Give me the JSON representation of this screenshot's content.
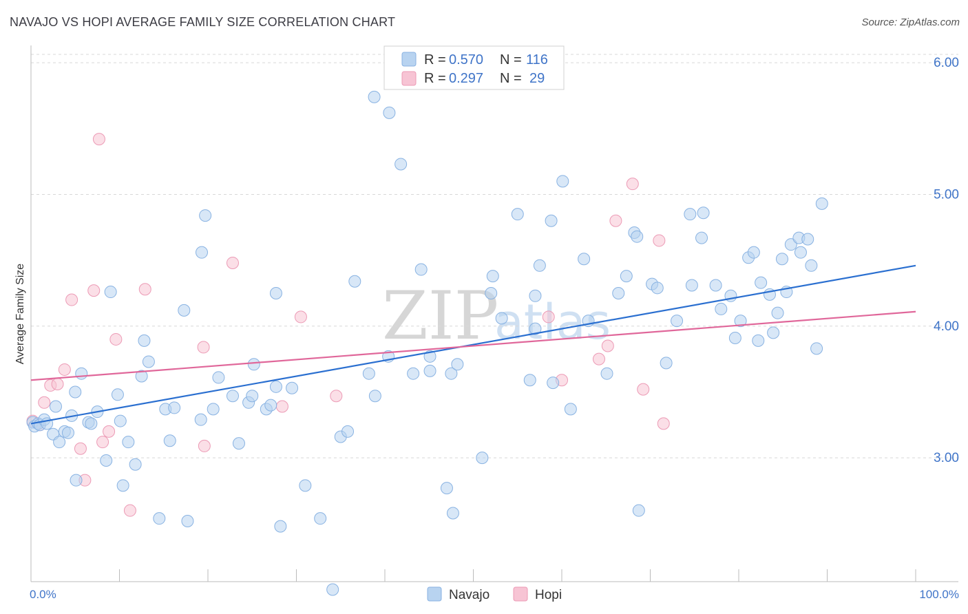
{
  "title": "NAVAJO VS HOPI AVERAGE FAMILY SIZE CORRELATION CHART",
  "source": "Source: ZipAtlas.com",
  "watermark": {
    "zip": "ZIP",
    "atlas": "atlas"
  },
  "colors": {
    "navajo_fill": "#b8d3f0",
    "navajo_stroke": "#88b2e2",
    "navajo_line": "#2a6fd0",
    "hopi_fill": "#f7c4d4",
    "hopi_stroke": "#ec9ab5",
    "hopi_line": "#e0679a",
    "grid": "#d8d8d8",
    "tick_text": "#3f74c8"
  },
  "legend": {
    "rows": [
      {
        "r_label": "R =",
        "r_value": "0.570",
        "n_label": "N =",
        "n_value": "116"
      },
      {
        "r_label": "R =",
        "r_value": "0.297",
        "n_label": "N =",
        "n_value": "29"
      }
    ]
  },
  "bottom_legend": {
    "navajo": "Navajo",
    "hopi": "Hopi"
  },
  "chart_data": {
    "type": "scatter",
    "title": "NAVAJO VS HOPI AVERAGE FAMILY SIZE CORRELATION CHART",
    "xlabel": "",
    "ylabel": "Average Family Size",
    "xlim": [
      0,
      100
    ],
    "ylim": [
      2.06,
      6.1
    ],
    "x_tick_labels": [
      {
        "value": 0,
        "label": "0.0%"
      },
      {
        "value": 100,
        "label": "100.0%"
      }
    ],
    "y_ticks": [
      {
        "value": 3.0,
        "label": "3.00"
      },
      {
        "value": 4.0,
        "label": "4.00"
      },
      {
        "value": 5.0,
        "label": "5.00"
      },
      {
        "value": 6.0,
        "label": "6.00"
      }
    ],
    "series": [
      {
        "name": "Navajo",
        "trendline": {
          "x": [
            0,
            100
          ],
          "y": [
            3.26,
            4.46
          ]
        },
        "points": [
          [
            0.2,
            3.27
          ],
          [
            0.4,
            3.24
          ],
          [
            0.8,
            3.26
          ],
          [
            1.0,
            3.25
          ],
          [
            1.5,
            3.29
          ],
          [
            1.8,
            3.26
          ],
          [
            2.5,
            3.18
          ],
          [
            2.8,
            3.39
          ],
          [
            3.2,
            3.12
          ],
          [
            3.8,
            3.2
          ],
          [
            4.2,
            3.19
          ],
          [
            4.6,
            3.32
          ],
          [
            5.0,
            3.5
          ],
          [
            5.1,
            2.83
          ],
          [
            5.7,
            3.64
          ],
          [
            6.5,
            3.27
          ],
          [
            6.8,
            3.26
          ],
          [
            7.5,
            3.35
          ],
          [
            8.5,
            2.98
          ],
          [
            9.0,
            4.26
          ],
          [
            9.8,
            3.48
          ],
          [
            10.1,
            3.28
          ],
          [
            10.4,
            2.79
          ],
          [
            11.0,
            3.12
          ],
          [
            11.8,
            2.95
          ],
          [
            12.5,
            3.62
          ],
          [
            12.8,
            3.89
          ],
          [
            13.3,
            3.73
          ],
          [
            14.5,
            2.54
          ],
          [
            15.2,
            3.37
          ],
          [
            16.2,
            3.38
          ],
          [
            15.7,
            3.13
          ],
          [
            17.3,
            4.12
          ],
          [
            17.7,
            2.52
          ],
          [
            19.2,
            3.29
          ],
          [
            19.3,
            4.56
          ],
          [
            19.7,
            4.84
          ],
          [
            20.6,
            3.37
          ],
          [
            21.2,
            3.61
          ],
          [
            22.8,
            3.47
          ],
          [
            23.5,
            3.11
          ],
          [
            24.6,
            3.42
          ],
          [
            25.0,
            3.47
          ],
          [
            25.2,
            3.71
          ],
          [
            26.6,
            3.37
          ],
          [
            27.1,
            3.4
          ],
          [
            27.7,
            3.54
          ],
          [
            27.7,
            4.25
          ],
          [
            28.2,
            2.48
          ],
          [
            29.5,
            3.53
          ],
          [
            31.0,
            2.79
          ],
          [
            32.7,
            2.54
          ],
          [
            34.1,
            2.0
          ],
          [
            35.0,
            3.16
          ],
          [
            35.8,
            3.2
          ],
          [
            36.6,
            4.34
          ],
          [
            38.2,
            3.64
          ],
          [
            38.8,
            5.74
          ],
          [
            38.9,
            3.47
          ],
          [
            40.5,
            5.62
          ],
          [
            40.4,
            3.77
          ],
          [
            41.8,
            5.23
          ],
          [
            43.2,
            3.64
          ],
          [
            44.1,
            4.43
          ],
          [
            45.1,
            3.66
          ],
          [
            45.1,
            3.77
          ],
          [
            47.0,
            2.77
          ],
          [
            47.5,
            3.64
          ],
          [
            47.7,
            2.58
          ],
          [
            48.2,
            3.71
          ],
          [
            51.0,
            3.0
          ],
          [
            52.0,
            4.25
          ],
          [
            52.2,
            4.38
          ],
          [
            53.2,
            4.06
          ],
          [
            55.0,
            4.85
          ],
          [
            56.4,
            3.59
          ],
          [
            57.0,
            4.23
          ],
          [
            57.0,
            3.98
          ],
          [
            57.5,
            4.46
          ],
          [
            58.8,
            4.8
          ],
          [
            59.0,
            3.57
          ],
          [
            60.1,
            5.1
          ],
          [
            61.0,
            3.37
          ],
          [
            62.5,
            4.51
          ],
          [
            63.0,
            4.04
          ],
          [
            65.1,
            3.64
          ],
          [
            66.4,
            4.25
          ],
          [
            67.3,
            4.38
          ],
          [
            68.2,
            4.71
          ],
          [
            68.5,
            4.68
          ],
          [
            68.7,
            2.6
          ],
          [
            70.2,
            4.32
          ],
          [
            70.8,
            4.29
          ],
          [
            71.8,
            3.72
          ],
          [
            73.0,
            4.04
          ],
          [
            74.5,
            4.85
          ],
          [
            74.7,
            4.31
          ],
          [
            75.8,
            4.67
          ],
          [
            76.0,
            4.86
          ],
          [
            77.4,
            4.31
          ],
          [
            78.0,
            4.13
          ],
          [
            79.1,
            4.23
          ],
          [
            79.6,
            3.91
          ],
          [
            80.2,
            4.04
          ],
          [
            81.1,
            4.52
          ],
          [
            81.7,
            4.56
          ],
          [
            82.2,
            3.89
          ],
          [
            82.5,
            4.33
          ],
          [
            83.5,
            4.24
          ],
          [
            83.9,
            3.95
          ],
          [
            84.4,
            4.1
          ],
          [
            84.9,
            4.51
          ],
          [
            85.4,
            4.26
          ],
          [
            85.9,
            4.62
          ],
          [
            86.8,
            4.67
          ],
          [
            87.0,
            4.56
          ],
          [
            87.8,
            4.66
          ],
          [
            88.2,
            4.46
          ],
          [
            88.8,
            3.83
          ],
          [
            89.4,
            4.93
          ]
        ]
      },
      {
        "name": "Hopi",
        "trendline": {
          "x": [
            0,
            100
          ],
          "y": [
            3.59,
            4.11
          ]
        },
        "points": [
          [
            0.2,
            3.28
          ],
          [
            1.0,
            3.25
          ],
          [
            1.5,
            3.42
          ],
          [
            2.2,
            3.55
          ],
          [
            3.0,
            3.56
          ],
          [
            3.8,
            3.67
          ],
          [
            4.6,
            4.2
          ],
          [
            5.6,
            3.07
          ],
          [
            6.1,
            2.83
          ],
          [
            7.1,
            4.27
          ],
          [
            7.7,
            5.42
          ],
          [
            8.1,
            3.12
          ],
          [
            8.8,
            3.2
          ],
          [
            9.6,
            3.9
          ],
          [
            11.2,
            2.6
          ],
          [
            12.9,
            4.28
          ],
          [
            19.5,
            3.84
          ],
          [
            19.6,
            3.09
          ],
          [
            22.8,
            4.48
          ],
          [
            28.4,
            3.39
          ],
          [
            30.5,
            4.07
          ],
          [
            34.5,
            3.47
          ],
          [
            58.5,
            4.07
          ],
          [
            60.0,
            3.59
          ],
          [
            64.2,
            3.75
          ],
          [
            65.2,
            3.85
          ],
          [
            66.1,
            4.8
          ],
          [
            68.0,
            5.08
          ],
          [
            69.2,
            3.52
          ],
          [
            71.0,
            4.65
          ],
          [
            71.5,
            3.26
          ]
        ]
      }
    ]
  }
}
